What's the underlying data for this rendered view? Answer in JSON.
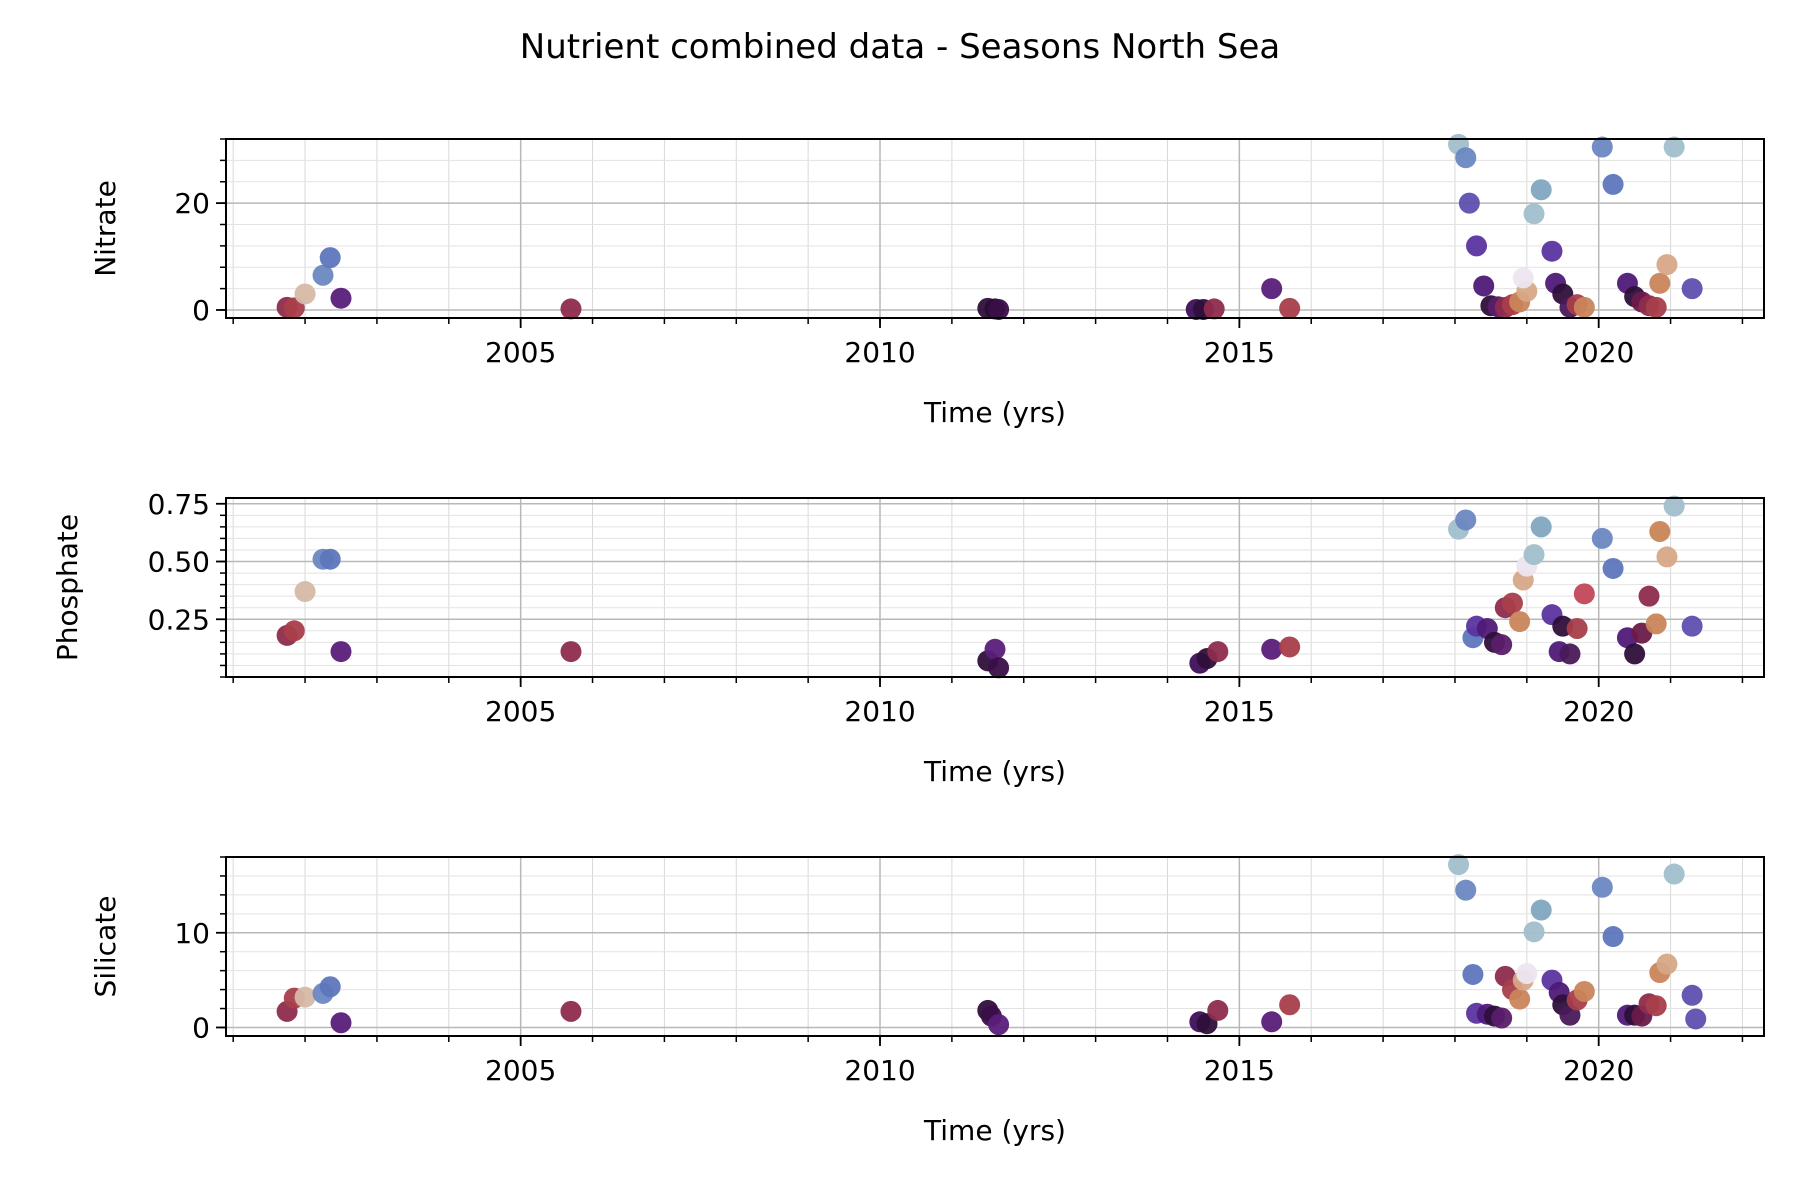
{
  "title": "Nutrient combined data - Seasons North Sea",
  "colormap": [
    "#ede5f0",
    "#d6b9a6",
    "#c9855a",
    "#a83e4a",
    "#6a1b4a",
    "#2e0f3a",
    "#4f1a78",
    "#5e50b0",
    "#6c87c2",
    "#a0bfcb"
  ],
  "chart_data": [
    {
      "type": "scatter",
      "ylabel": "Nitrate",
      "xlabel": "Time (yrs)",
      "xlim": [
        2000.9,
        2022.3
      ],
      "ylim": [
        -1.5,
        32
      ],
      "xticks": [
        2005,
        2010,
        2015,
        2020
      ],
      "yticks": [
        0,
        20
      ],
      "points": [
        {
          "x": 2001.75,
          "y": 0.5,
          "c": "#8e2c4e"
        },
        {
          "x": 2001.85,
          "y": 0.4,
          "c": "#a83e4a"
        },
        {
          "x": 2002.0,
          "y": 3.0,
          "c": "#d6b9a6"
        },
        {
          "x": 2002.25,
          "y": 6.5,
          "c": "#6c87c2"
        },
        {
          "x": 2002.35,
          "y": 9.8,
          "c": "#5e76bd"
        },
        {
          "x": 2002.5,
          "y": 2.2,
          "c": "#5a1e7a"
        },
        {
          "x": 2005.7,
          "y": 0.2,
          "c": "#8e2c4e"
        },
        {
          "x": 2011.5,
          "y": 0.3,
          "c": "#2e0f3a"
        },
        {
          "x": 2011.6,
          "y": 0.2,
          "c": "#2a0c34"
        },
        {
          "x": 2011.65,
          "y": 0.1,
          "c": "#3a0f48"
        },
        {
          "x": 2014.4,
          "y": 0.1,
          "c": "#3e0f5a"
        },
        {
          "x": 2014.5,
          "y": 0.1,
          "c": "#2e0f3a"
        },
        {
          "x": 2014.65,
          "y": 0.2,
          "c": "#8e2c4e"
        },
        {
          "x": 2015.45,
          "y": 4.0,
          "c": "#5a1e7a"
        },
        {
          "x": 2015.7,
          "y": 0.3,
          "c": "#a83e4a"
        },
        {
          "x": 2018.05,
          "y": 31.0,
          "c": "#a0bfcb"
        },
        {
          "x": 2018.15,
          "y": 28.5,
          "c": "#6c87c2"
        },
        {
          "x": 2018.2,
          "y": 20.0,
          "c": "#5e50b0"
        },
        {
          "x": 2018.3,
          "y": 12.0,
          "c": "#5a34a0"
        },
        {
          "x": 2018.4,
          "y": 4.5,
          "c": "#4f1a78"
        },
        {
          "x": 2018.5,
          "y": 0.8,
          "c": "#2e0f3a"
        },
        {
          "x": 2018.6,
          "y": 0.6,
          "c": "#5a1e6a"
        },
        {
          "x": 2018.7,
          "y": 0.5,
          "c": "#8e2c4e"
        },
        {
          "x": 2018.8,
          "y": 1.0,
          "c": "#a83e4a"
        },
        {
          "x": 2018.9,
          "y": 1.5,
          "c": "#c9855a"
        },
        {
          "x": 2019.0,
          "y": 3.5,
          "c": "#d6a886"
        },
        {
          "x": 2018.95,
          "y": 6.0,
          "c": "#ede5f0"
        },
        {
          "x": 2019.1,
          "y": 18.0,
          "c": "#a0bfcb"
        },
        {
          "x": 2019.2,
          "y": 22.5,
          "c": "#7fa7c0"
        },
        {
          "x": 2019.35,
          "y": 11.0,
          "c": "#5a34a0"
        },
        {
          "x": 2019.4,
          "y": 5.0,
          "c": "#4f1a78"
        },
        {
          "x": 2019.5,
          "y": 3.0,
          "c": "#2e0f3a"
        },
        {
          "x": 2019.6,
          "y": 0.5,
          "c": "#4a1a5a"
        },
        {
          "x": 2019.7,
          "y": 1.0,
          "c": "#a83e4a"
        },
        {
          "x": 2019.8,
          "y": 0.5,
          "c": "#c9855a"
        },
        {
          "x": 2020.05,
          "y": 30.5,
          "c": "#6c87c2"
        },
        {
          "x": 2020.2,
          "y": 23.5,
          "c": "#5e76bd"
        },
        {
          "x": 2020.4,
          "y": 5.0,
          "c": "#4f1a78"
        },
        {
          "x": 2020.5,
          "y": 2.5,
          "c": "#2e0f3a"
        },
        {
          "x": 2020.6,
          "y": 1.5,
          "c": "#6a1b4a"
        },
        {
          "x": 2020.7,
          "y": 0.8,
          "c": "#8e2c4e"
        },
        {
          "x": 2020.8,
          "y": 0.5,
          "c": "#a83e4a"
        },
        {
          "x": 2020.85,
          "y": 5.0,
          "c": "#c9855a"
        },
        {
          "x": 2020.95,
          "y": 8.5,
          "c": "#d6a886"
        },
        {
          "x": 2021.05,
          "y": 30.5,
          "c": "#a0bfcb"
        },
        {
          "x": 2021.3,
          "y": 4.0,
          "c": "#5e50b0"
        }
      ]
    },
    {
      "type": "scatter",
      "ylabel": "Phosphate",
      "xlabel": "Time (yrs)",
      "xlim": [
        2000.9,
        2022.3
      ],
      "ylim": [
        0.0,
        0.775
      ],
      "xticks": [
        2005,
        2010,
        2015,
        2020
      ],
      "yticks": [
        0.25,
        0.5,
        0.75
      ],
      "yticklabels": [
        "0.25",
        "0.50",
        "0.75"
      ],
      "points": [
        {
          "x": 2001.75,
          "y": 0.18,
          "c": "#8e2c4e"
        },
        {
          "x": 2001.85,
          "y": 0.2,
          "c": "#a83e4a"
        },
        {
          "x": 2002.0,
          "y": 0.37,
          "c": "#d6b9a6"
        },
        {
          "x": 2002.25,
          "y": 0.51,
          "c": "#6c87c2"
        },
        {
          "x": 2002.35,
          "y": 0.51,
          "c": "#5e76bd"
        },
        {
          "x": 2002.5,
          "y": 0.11,
          "c": "#5a1e7a"
        },
        {
          "x": 2005.7,
          "y": 0.11,
          "c": "#8e2c4e"
        },
        {
          "x": 2011.5,
          "y": 0.07,
          "c": "#2e0f3a"
        },
        {
          "x": 2011.6,
          "y": 0.12,
          "c": "#5a1e7a"
        },
        {
          "x": 2011.65,
          "y": 0.04,
          "c": "#3a0f48"
        },
        {
          "x": 2014.45,
          "y": 0.06,
          "c": "#3e0f5a"
        },
        {
          "x": 2014.55,
          "y": 0.08,
          "c": "#2e0f3a"
        },
        {
          "x": 2014.7,
          "y": 0.11,
          "c": "#8e2c4e"
        },
        {
          "x": 2015.45,
          "y": 0.12,
          "c": "#5a1e7a"
        },
        {
          "x": 2015.7,
          "y": 0.13,
          "c": "#a83e4a"
        },
        {
          "x": 2018.05,
          "y": 0.64,
          "c": "#a0bfcb"
        },
        {
          "x": 2018.15,
          "y": 0.68,
          "c": "#6c87c2"
        },
        {
          "x": 2018.25,
          "y": 0.17,
          "c": "#5e76bd"
        },
        {
          "x": 2018.3,
          "y": 0.22,
          "c": "#5a34a0"
        },
        {
          "x": 2018.45,
          "y": 0.21,
          "c": "#4f1a78"
        },
        {
          "x": 2018.55,
          "y": 0.15,
          "c": "#2e0f3a"
        },
        {
          "x": 2018.65,
          "y": 0.14,
          "c": "#5a1e6a"
        },
        {
          "x": 2018.7,
          "y": 0.3,
          "c": "#8e2c4e"
        },
        {
          "x": 2018.8,
          "y": 0.32,
          "c": "#a83e4a"
        },
        {
          "x": 2018.9,
          "y": 0.24,
          "c": "#c9855a"
        },
        {
          "x": 2018.95,
          "y": 0.42,
          "c": "#d6a886"
        },
        {
          "x": 2019.0,
          "y": 0.48,
          "c": "#ede5f0"
        },
        {
          "x": 2019.1,
          "y": 0.53,
          "c": "#a0bfcb"
        },
        {
          "x": 2019.2,
          "y": 0.65,
          "c": "#7fa7c0"
        },
        {
          "x": 2019.35,
          "y": 0.27,
          "c": "#5a34a0"
        },
        {
          "x": 2019.45,
          "y": 0.11,
          "c": "#4f1a78"
        },
        {
          "x": 2019.5,
          "y": 0.22,
          "c": "#2e0f3a"
        },
        {
          "x": 2019.6,
          "y": 0.1,
          "c": "#4a1a5a"
        },
        {
          "x": 2019.7,
          "y": 0.21,
          "c": "#a83e4a"
        },
        {
          "x": 2019.8,
          "y": 0.36,
          "c": "#c2475a"
        },
        {
          "x": 2020.05,
          "y": 0.6,
          "c": "#6c87c2"
        },
        {
          "x": 2020.2,
          "y": 0.47,
          "c": "#5e76bd"
        },
        {
          "x": 2020.4,
          "y": 0.17,
          "c": "#4f1a78"
        },
        {
          "x": 2020.5,
          "y": 0.1,
          "c": "#2e0f3a"
        },
        {
          "x": 2020.6,
          "y": 0.19,
          "c": "#6a1b4a"
        },
        {
          "x": 2020.7,
          "y": 0.35,
          "c": "#8e2c4e"
        },
        {
          "x": 2020.8,
          "y": 0.23,
          "c": "#c9855a"
        },
        {
          "x": 2020.85,
          "y": 0.63,
          "c": "#c98556"
        },
        {
          "x": 2020.95,
          "y": 0.52,
          "c": "#d6a886"
        },
        {
          "x": 2021.05,
          "y": 0.74,
          "c": "#a0bfcb"
        },
        {
          "x": 2021.3,
          "y": 0.22,
          "c": "#5e50b0"
        }
      ]
    },
    {
      "type": "scatter",
      "ylabel": "Silicate",
      "xlabel": "Time (yrs)",
      "xlim": [
        2000.9,
        2022.3
      ],
      "ylim": [
        -0.9,
        18
      ],
      "xticks": [
        2005,
        2010,
        2015,
        2020
      ],
      "yticks": [
        0,
        10
      ],
      "points": [
        {
          "x": 2001.75,
          "y": 1.7,
          "c": "#8e2c4e"
        },
        {
          "x": 2001.85,
          "y": 3.1,
          "c": "#a83e4a"
        },
        {
          "x": 2002.0,
          "y": 3.2,
          "c": "#d6b9a6"
        },
        {
          "x": 2002.25,
          "y": 3.6,
          "c": "#6c87c2"
        },
        {
          "x": 2002.35,
          "y": 4.3,
          "c": "#5e76bd"
        },
        {
          "x": 2002.5,
          "y": 0.5,
          "c": "#5a1e7a"
        },
        {
          "x": 2005.7,
          "y": 1.7,
          "c": "#8e2c4e"
        },
        {
          "x": 2011.5,
          "y": 1.8,
          "c": "#2e0f3a"
        },
        {
          "x": 2011.55,
          "y": 1.2,
          "c": "#3a0f48"
        },
        {
          "x": 2011.65,
          "y": 0.3,
          "c": "#5a1e7a"
        },
        {
          "x": 2014.45,
          "y": 0.6,
          "c": "#3e0f5a"
        },
        {
          "x": 2014.55,
          "y": 0.4,
          "c": "#2e0f3a"
        },
        {
          "x": 2014.7,
          "y": 1.8,
          "c": "#8e2c4e"
        },
        {
          "x": 2015.45,
          "y": 0.6,
          "c": "#5a1e7a"
        },
        {
          "x": 2015.7,
          "y": 2.4,
          "c": "#a83e4a"
        },
        {
          "x": 2018.05,
          "y": 17.2,
          "c": "#a0bfcb"
        },
        {
          "x": 2018.15,
          "y": 14.5,
          "c": "#6c87c2"
        },
        {
          "x": 2018.25,
          "y": 5.6,
          "c": "#5e76bd"
        },
        {
          "x": 2018.3,
          "y": 1.5,
          "c": "#5a34a0"
        },
        {
          "x": 2018.45,
          "y": 1.4,
          "c": "#4f1a78"
        },
        {
          "x": 2018.55,
          "y": 1.2,
          "c": "#2e0f3a"
        },
        {
          "x": 2018.65,
          "y": 1.0,
          "c": "#5a1e6a"
        },
        {
          "x": 2018.7,
          "y": 5.4,
          "c": "#8e2c4e"
        },
        {
          "x": 2018.8,
          "y": 4.0,
          "c": "#a83e4a"
        },
        {
          "x": 2018.9,
          "y": 3.0,
          "c": "#c9855a"
        },
        {
          "x": 2018.95,
          "y": 5.0,
          "c": "#d6a886"
        },
        {
          "x": 2019.0,
          "y": 5.7,
          "c": "#ede5f0"
        },
        {
          "x": 2019.1,
          "y": 10.1,
          "c": "#a0bfcb"
        },
        {
          "x": 2019.2,
          "y": 12.4,
          "c": "#7fa7c0"
        },
        {
          "x": 2019.35,
          "y": 5.0,
          "c": "#5a34a0"
        },
        {
          "x": 2019.45,
          "y": 3.7,
          "c": "#4f1a78"
        },
        {
          "x": 2019.5,
          "y": 2.4,
          "c": "#2e0f3a"
        },
        {
          "x": 2019.6,
          "y": 1.3,
          "c": "#4a1a5a"
        },
        {
          "x": 2019.7,
          "y": 2.9,
          "c": "#a83e4a"
        },
        {
          "x": 2019.8,
          "y": 3.8,
          "c": "#c9855a"
        },
        {
          "x": 2020.05,
          "y": 14.8,
          "c": "#6c87c2"
        },
        {
          "x": 2020.2,
          "y": 9.6,
          "c": "#5e76bd"
        },
        {
          "x": 2020.4,
          "y": 1.3,
          "c": "#4f1a78"
        },
        {
          "x": 2020.5,
          "y": 1.3,
          "c": "#2e0f3a"
        },
        {
          "x": 2020.6,
          "y": 1.2,
          "c": "#6a1b4a"
        },
        {
          "x": 2020.7,
          "y": 2.5,
          "c": "#8e2c4e"
        },
        {
          "x": 2020.8,
          "y": 2.3,
          "c": "#a83e4a"
        },
        {
          "x": 2020.85,
          "y": 5.8,
          "c": "#c9855a"
        },
        {
          "x": 2020.95,
          "y": 6.7,
          "c": "#d6a886"
        },
        {
          "x": 2021.05,
          "y": 16.2,
          "c": "#a0bfcb"
        },
        {
          "x": 2021.3,
          "y": 3.4,
          "c": "#5e50b0"
        },
        {
          "x": 2021.35,
          "y": 0.9,
          "c": "#5e50b0"
        }
      ]
    }
  ]
}
